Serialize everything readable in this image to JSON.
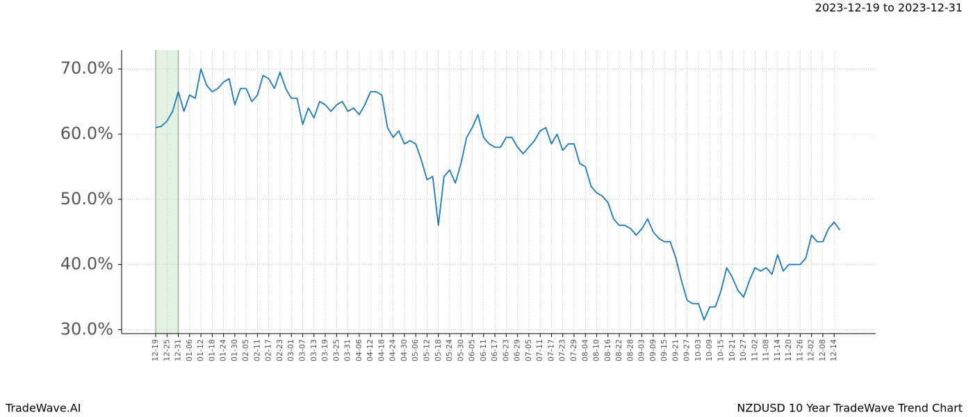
{
  "chart_data": {
    "type": "line",
    "title": "NZDUSD 10 Year TradeWave Trend Chart",
    "subtitle": "2023-12-19 to 2023-12-31",
    "watermark": "TradeWave.AI",
    "color": "#1f77b4",
    "highlight": [
      "12-19",
      "12-31"
    ],
    "grid": true,
    "ylim": [
      29.4,
      72.9
    ],
    "yticks": [
      {
        "value": 30,
        "label": "30.0%"
      },
      {
        "value": 40,
        "label": "40.0%"
      },
      {
        "value": 50,
        "label": "50.0%"
      },
      {
        "value": 60,
        "label": "60.0%"
      },
      {
        "value": 70,
        "label": "70.0%"
      }
    ],
    "categories": [
      "12-19",
      null,
      "12-25",
      null,
      "12-31",
      null,
      "01-06",
      null,
      "01-12",
      null,
      "01-18",
      null,
      "01-24",
      null,
      "01-30",
      null,
      "02-05",
      null,
      "02-11",
      null,
      "02-17",
      null,
      "02-23",
      null,
      "03-01",
      null,
      "03-07",
      null,
      "03-13",
      null,
      "03-19",
      null,
      "03-25",
      null,
      "03-31",
      null,
      "04-06",
      null,
      "04-12",
      null,
      "04-18",
      null,
      "04-24",
      null,
      "04-30",
      null,
      "05-06",
      null,
      "05-12",
      null,
      "05-18",
      null,
      "05-24",
      null,
      "05-30",
      null,
      "06-05",
      null,
      "06-11",
      null,
      "06-17",
      null,
      "06-23",
      null,
      "06-29",
      null,
      "07-05",
      null,
      "07-11",
      null,
      "07-17",
      null,
      "07-23",
      null,
      "07-29",
      null,
      "08-04",
      null,
      "08-10",
      null,
      "08-16",
      null,
      "08-22",
      null,
      "08-28",
      null,
      "09-03",
      null,
      "09-09",
      null,
      "09-15",
      null,
      "09-21",
      null,
      "09-27",
      null,
      "10-03",
      null,
      "10-09",
      null,
      "10-15",
      null,
      "10-21",
      null,
      "10-27",
      null,
      "11-02",
      null,
      "11-08",
      null,
      "11-14",
      null,
      "11-20",
      null,
      "11-26",
      null,
      "12-02",
      null,
      "12-08",
      null,
      "12-14",
      null
    ],
    "values": [
      61,
      61.2,
      62,
      63.5,
      66.5,
      63.5,
      66,
      65.5,
      70,
      67.5,
      66.5,
      67,
      68,
      68.5,
      64.5,
      67,
      67,
      65,
      66,
      69,
      68.5,
      67,
      69.5,
      67,
      65.5,
      65.5,
      61.5,
      64,
      62.5,
      65,
      64.5,
      63.5,
      64.5,
      65,
      63.5,
      64,
      63,
      64.5,
      66.5,
      66.5,
      66,
      61,
      59.5,
      60.5,
      58.5,
      59,
      58.5,
      56,
      53,
      53.5,
      46,
      53.5,
      54.5,
      52.5,
      55.5,
      59.5,
      61,
      63,
      59.5,
      58.5,
      58,
      58,
      59.5,
      59.5,
      58,
      57,
      58,
      59,
      60.5,
      61,
      58.5,
      60,
      57.5,
      58.5,
      58.5,
      55.5,
      55,
      52,
      51,
      50.5,
      49.5,
      47,
      46,
      46,
      45.5,
      44.5,
      45.5,
      47,
      45,
      44,
      43.5,
      43.5,
      41,
      37.5,
      34.5,
      34,
      34,
      31.5,
      33.5,
      33.5,
      36,
      39.5,
      38,
      36,
      35,
      37.5,
      39.5,
      39,
      39.5,
      38.5,
      41.5,
      39,
      40,
      40,
      40,
      41,
      44.5,
      43.5,
      43.5,
      45.5,
      46.5,
      45.3
    ]
  }
}
